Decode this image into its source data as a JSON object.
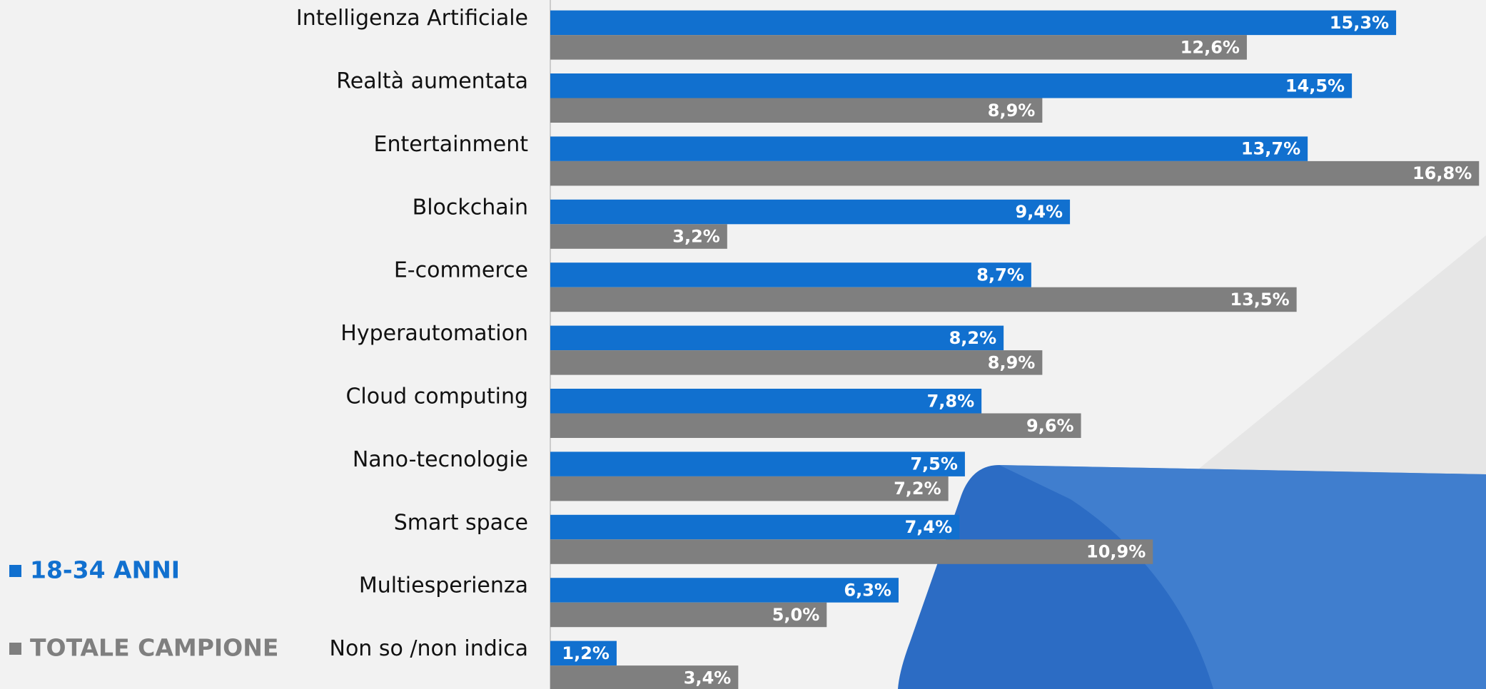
{
  "chart_data": {
    "type": "bar",
    "orientation": "horizontal",
    "categories": [
      "Intelligenza Artificiale",
      "Realtà aumentata",
      "Entertainment",
      "Blockchain",
      "E-commerce",
      "Hyperautomation",
      "Cloud computing",
      "Nano-tecnologie",
      "Smart space",
      "Multiesperienza",
      "Non so /non indica"
    ],
    "series": [
      {
        "name": "18-34 ANNI",
        "color": "#1170cf",
        "values": [
          15.3,
          14.5,
          13.7,
          9.4,
          8.7,
          8.2,
          7.8,
          7.5,
          7.4,
          6.3,
          1.2
        ],
        "value_labels": [
          "15,3%",
          "14,5%",
          "13,7%",
          "9,4%",
          "8,7%",
          "8,2%",
          "7,8%",
          "7,5%",
          "7,4%",
          "6,3%",
          "1,2%"
        ]
      },
      {
        "name": "TOTALE CAMPIONE",
        "color": "#7f7f7f",
        "values": [
          12.6,
          8.9,
          16.8,
          3.2,
          13.5,
          8.9,
          9.6,
          7.2,
          10.9,
          5.0,
          3.4
        ],
        "value_labels": [
          "12,6%",
          "8,9%",
          "16,8%",
          "3,2%",
          "13,5%",
          "8,9%",
          "9,6%",
          "7,2%",
          "10,9%",
          "5,0%",
          "3,4%"
        ]
      }
    ],
    "xlim": [
      0,
      16.9
    ],
    "legend": "bottom-left"
  }
}
